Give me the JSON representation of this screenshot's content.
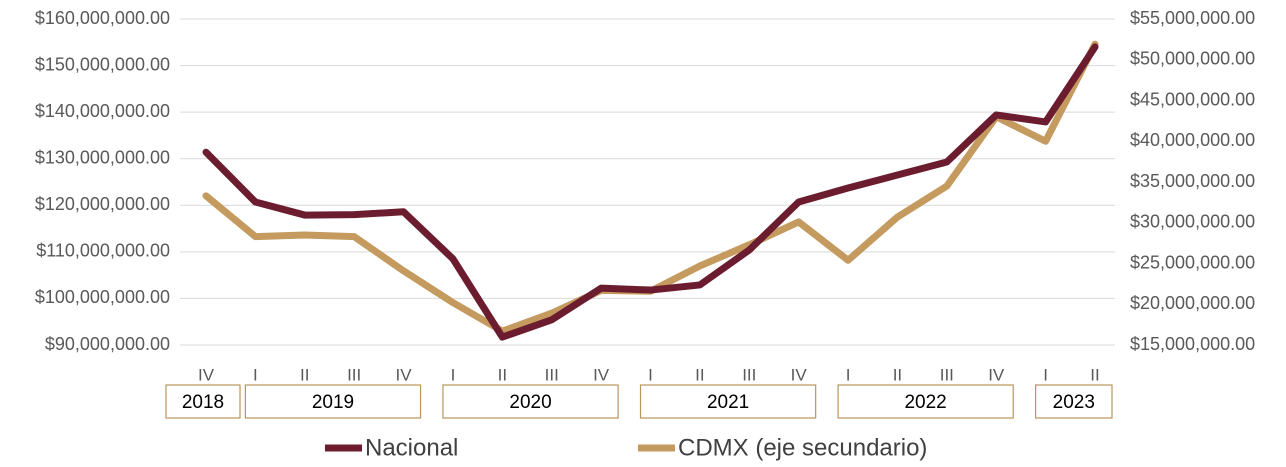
{
  "chart_data": {
    "type": "line",
    "categories": [
      "IV",
      "I",
      "II",
      "III",
      "IV",
      "I",
      "II",
      "III",
      "IV",
      "I",
      "II",
      "III",
      "IV",
      "I",
      "II",
      "III",
      "IV",
      "I",
      "II"
    ],
    "groups": [
      {
        "label": "2018",
        "count": 1
      },
      {
        "label": "2019",
        "count": 4
      },
      {
        "label": "2020",
        "count": 4
      },
      {
        "label": "2021",
        "count": 4
      },
      {
        "label": "2022",
        "count": 4
      },
      {
        "label": "2023",
        "count": 2
      }
    ],
    "series": [
      {
        "name": "Nacional",
        "color": "#6b1d2f",
        "axis": "y",
        "values": [
          131400000,
          120700000,
          117900000,
          118000000,
          118600000,
          108500000,
          91700000,
          95400000,
          102200000,
          101800000,
          102900000,
          110400000,
          120700000,
          123700000,
          126500000,
          129300000,
          139400000,
          137900000,
          154000000
        ]
      },
      {
        "name": "CDMX (eje secundario)",
        "color": "#c49a5e",
        "axis": "y2",
        "values": [
          33300000,
          28300000,
          28500000,
          28300000,
          24100000,
          20200000,
          16700000,
          18900000,
          21700000,
          21600000,
          24700000,
          27300000,
          30100000,
          25400000,
          30700000,
          34500000,
          43000000,
          40000000,
          51900000
        ]
      }
    ],
    "ylim": [
      90000000,
      160000000
    ],
    "yticks": [
      {
        "value": 90000000,
        "label": "$90,000,000.00"
      },
      {
        "value": 100000000,
        "label": "$100,000,000.00"
      },
      {
        "value": 110000000,
        "label": "$110,000,000.00"
      },
      {
        "value": 120000000,
        "label": "$120,000,000.00"
      },
      {
        "value": 130000000,
        "label": "$130,000,000.00"
      },
      {
        "value": 140000000,
        "label": "$140,000,000.00"
      },
      {
        "value": 150000000,
        "label": "$150,000,000.00"
      },
      {
        "value": 160000000,
        "label": "$160,000,000.00"
      }
    ],
    "y2lim": [
      15000000,
      55000000
    ],
    "y2ticks": [
      {
        "value": 15000000,
        "label": "$15,000,000.00"
      },
      {
        "value": 20000000,
        "label": "$20,000,000.00"
      },
      {
        "value": 25000000,
        "label": "$25,000,000.00"
      },
      {
        "value": 30000000,
        "label": "$30,000,000.00"
      },
      {
        "value": 35000000,
        "label": "$35,000,000.00"
      },
      {
        "value": 40000000,
        "label": "$40,000,000.00"
      },
      {
        "value": 45000000,
        "label": "$45,000,000.00"
      },
      {
        "value": 50000000,
        "label": "$50,000,000.00"
      },
      {
        "value": 55000000,
        "label": "$55,000,000.00"
      }
    ],
    "grid": true,
    "legend": "bottom"
  }
}
